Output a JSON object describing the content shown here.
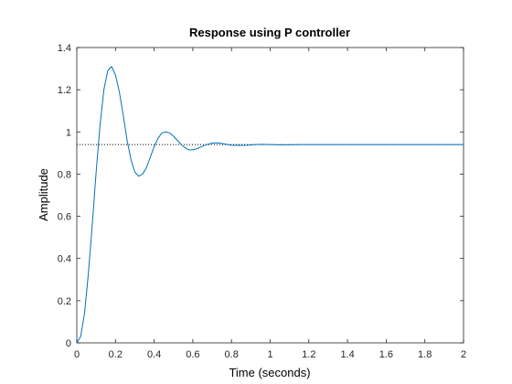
{
  "chart_data": {
    "type": "line",
    "title": "Response using P controller",
    "xlabel": "Time (seconds)",
    "ylabel": "Amplitude",
    "xlim": [
      0,
      2
    ],
    "ylim": [
      0,
      1.4
    ],
    "grid": false,
    "box": true,
    "xticks": [
      0,
      0.2,
      0.4,
      0.6,
      0.8,
      1,
      1.2,
      1.4,
      1.6,
      1.8,
      2
    ],
    "xtick_labels": [
      "0",
      "0.2",
      "0.4",
      "0.6",
      "0.8",
      "1",
      "1.2",
      "1.4",
      "1.6",
      "1.8",
      "2"
    ],
    "yticks": [
      0,
      0.2,
      0.4,
      0.6,
      0.8,
      1,
      1.2,
      1.4
    ],
    "ytick_labels": [
      "0",
      "0.2",
      "0.4",
      "0.6",
      "0.8",
      "1",
      "1.2",
      "1.4"
    ],
    "steady_state": {
      "value": 0.94,
      "style": "dotted",
      "color": "#000000"
    },
    "series": [
      {
        "color": "#0072bd",
        "x": [
          0,
          0.02,
          0.04,
          0.06,
          0.08,
          0.1,
          0.12,
          0.14,
          0.16,
          0.18,
          0.2,
          0.22,
          0.24,
          0.26,
          0.28,
          0.3,
          0.32,
          0.34,
          0.36,
          0.38,
          0.4,
          0.42,
          0.44,
          0.46,
          0.48,
          0.5,
          0.52,
          0.54,
          0.56,
          0.58,
          0.6,
          0.62,
          0.64,
          0.66,
          0.68,
          0.7,
          0.72,
          0.74,
          0.76,
          0.78,
          0.8,
          0.84,
          0.88,
          0.92,
          0.96,
          1.0,
          1.05,
          1.1,
          1.15,
          1.2,
          1.25,
          1.3,
          1.4,
          1.5,
          1.6,
          1.7,
          1.8,
          1.9,
          2.0
        ],
        "y": [
          0,
          0.03,
          0.14,
          0.33,
          0.56,
          0.81,
          1.03,
          1.2,
          1.29,
          1.31,
          1.27,
          1.19,
          1.08,
          0.96,
          0.87,
          0.81,
          0.79,
          0.8,
          0.83,
          0.88,
          0.93,
          0.97,
          0.995,
          1.0,
          0.995,
          0.98,
          0.96,
          0.94,
          0.925,
          0.915,
          0.915,
          0.92,
          0.928,
          0.936,
          0.942,
          0.947,
          0.948,
          0.947,
          0.944,
          0.94,
          0.937,
          0.936,
          0.937,
          0.94,
          0.941,
          0.94,
          0.939,
          0.939,
          0.94,
          0.94,
          0.94,
          0.94,
          0.94,
          0.94,
          0.94,
          0.94,
          0.94,
          0.94,
          0.94
        ]
      }
    ]
  }
}
